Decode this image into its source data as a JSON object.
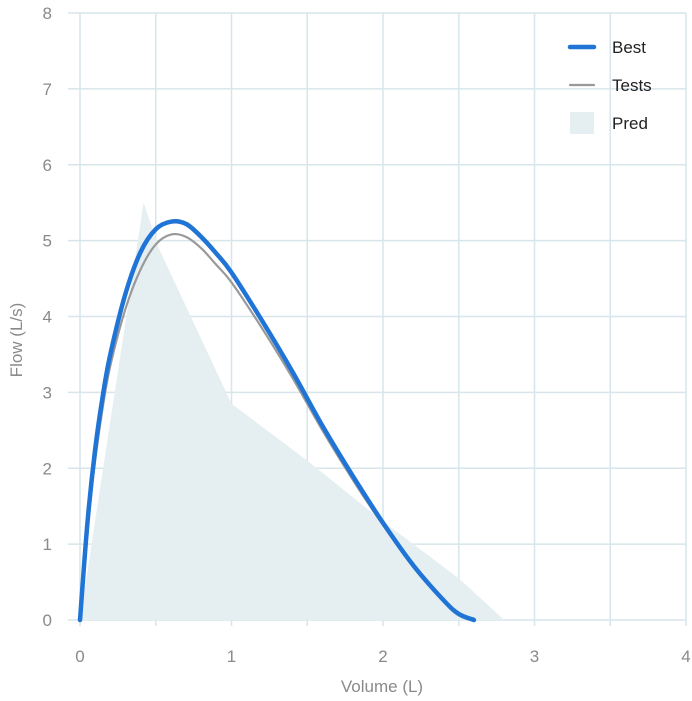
{
  "chart_data": {
    "type": "line",
    "xlabel": "Volume (L)",
    "ylabel": "Flow (L/s)",
    "xlim": [
      0,
      4
    ],
    "ylim": [
      0,
      8
    ],
    "x_ticks": [
      "0",
      "1",
      "2",
      "3",
      "4"
    ],
    "y_ticks": [
      "0",
      "1",
      "2",
      "3",
      "4",
      "5",
      "6",
      "7",
      "8"
    ],
    "grid": true,
    "legend_position": "top-right",
    "series": [
      {
        "name": "Pred",
        "type": "area",
        "color": "#e5eff1",
        "x": [
          0.0,
          0.42,
          0.52,
          1.0,
          1.5,
          2.0,
          2.5,
          2.8
        ],
        "y": [
          0.0,
          5.5,
          4.9,
          2.85,
          2.1,
          1.3,
          0.55,
          0.0
        ]
      },
      {
        "name": "Tests",
        "type": "line",
        "color": "#999999",
        "x": [
          0.0,
          0.05,
          0.1,
          0.15,
          0.2,
          0.3,
          0.4,
          0.5,
          0.6,
          0.7,
          0.8,
          0.9,
          1.0,
          1.2,
          1.4,
          1.6,
          1.8,
          2.0,
          2.2,
          2.4,
          2.5,
          2.6
        ],
        "y": [
          0.0,
          1.2,
          2.1,
          2.8,
          3.35,
          4.1,
          4.62,
          4.95,
          5.08,
          5.05,
          4.9,
          4.68,
          4.45,
          3.85,
          3.2,
          2.5,
          1.85,
          1.25,
          0.7,
          0.25,
          0.08,
          0.02
        ]
      },
      {
        "name": "Best",
        "type": "line",
        "color": "#1f74d6",
        "x": [
          0.0,
          0.05,
          0.1,
          0.15,
          0.2,
          0.3,
          0.4,
          0.5,
          0.6,
          0.7,
          0.8,
          0.9,
          1.0,
          1.2,
          1.4,
          1.6,
          1.8,
          2.0,
          2.2,
          2.4,
          2.5,
          2.6
        ],
        "y": [
          0.0,
          1.3,
          2.25,
          2.95,
          3.5,
          4.3,
          4.85,
          5.15,
          5.25,
          5.22,
          5.05,
          4.83,
          4.58,
          3.95,
          3.28,
          2.56,
          1.9,
          1.28,
          0.72,
          0.26,
          0.08,
          0.0
        ]
      }
    ]
  },
  "colors": {
    "grid": "#d6e6ea",
    "tick_text": "#8a8a8a",
    "legend_text": "#222222"
  }
}
